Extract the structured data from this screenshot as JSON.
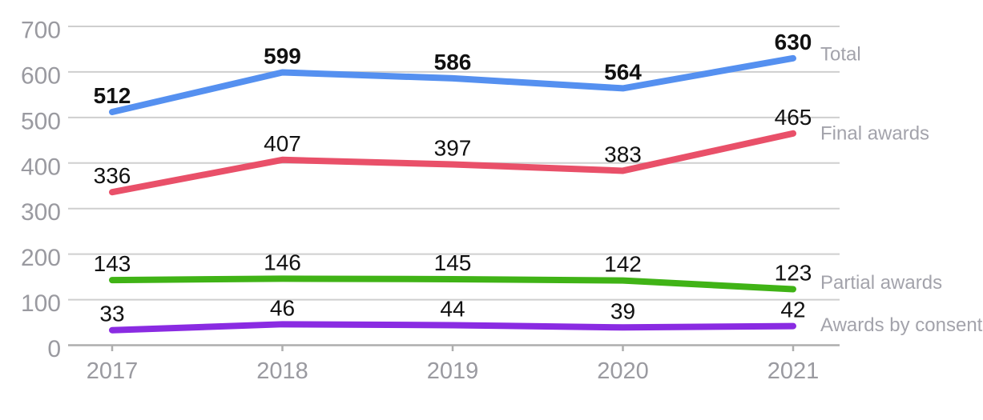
{
  "chart_data": {
    "type": "line",
    "title": "",
    "xlabel": "",
    "ylabel": "",
    "grid": "horizontal-only",
    "legend_position": "direct-labels-right-of-lines",
    "x": {
      "categories": [
        "2017",
        "2018",
        "2019",
        "2020",
        "2021"
      ]
    },
    "y": {
      "min": 0,
      "max": 700,
      "tick_step": 100,
      "ticks": [
        700,
        600,
        500,
        400,
        300,
        200,
        100,
        0
      ]
    },
    "series": [
      {
        "name": "Total",
        "color": "#5590f0",
        "values": [
          512,
          599,
          586,
          564,
          630
        ],
        "bold_labels": true
      },
      {
        "name": "Final awards",
        "color": "#e95069",
        "values": [
          336,
          407,
          397,
          383,
          465
        ],
        "bold_labels": false
      },
      {
        "name": "Partial awards",
        "color": "#40b316",
        "values": [
          143,
          146,
          145,
          142,
          123
        ],
        "bold_labels": false
      },
      {
        "name": "Awards by consent",
        "color": "#8a2be2",
        "values": [
          33,
          46,
          44,
          39,
          42
        ],
        "bold_labels": false
      }
    ],
    "colors": {
      "axis_text": "#9a9aa0",
      "series_label_text": "#a3a3ab",
      "gridline": "#cfcfcf",
      "baseline": "#aeaeae",
      "tick": "#aeaeae",
      "data_label_text": "#111111",
      "background": "#ffffff"
    }
  }
}
